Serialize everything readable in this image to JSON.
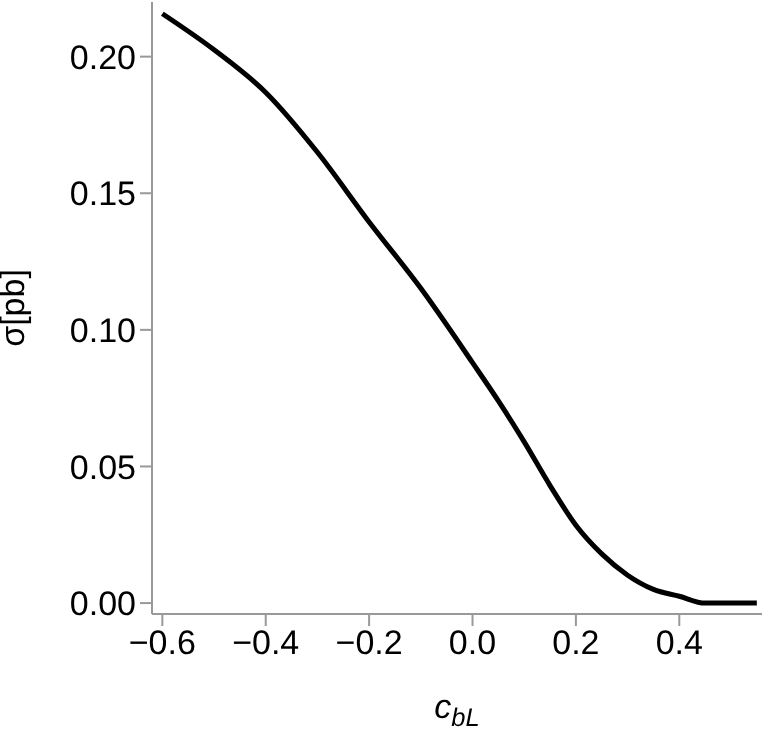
{
  "chart_data": {
    "type": "line",
    "xlabel": "c$_{bL}$",
    "ylabel": "σ[pb]",
    "x": [
      -0.6,
      -0.5,
      -0.4,
      -0.3,
      -0.2,
      -0.1,
      0.0,
      0.05,
      0.1,
      0.15,
      0.2,
      0.25,
      0.3,
      0.35,
      0.4,
      0.45,
      0.5,
      0.55
    ],
    "series": [
      {
        "color": "#000000",
        "values": [
          0.2157,
          0.2025,
          0.1869,
          0.165,
          0.1395,
          0.1152,
          0.088,
          0.074,
          0.059,
          0.043,
          0.0285,
          0.018,
          0.0102,
          0.005,
          0.0025,
          0.0,
          0.0,
          0.0
        ]
      }
    ],
    "xlim": [
      -0.62,
      0.56
    ],
    "xticks": [
      {
        "value": -0.6,
        "label": "−0.6"
      },
      {
        "value": -0.4,
        "label": "−0.4"
      },
      {
        "value": -0.2,
        "label": "−0.2"
      },
      {
        "value": 0,
        "label": "0.0"
      },
      {
        "value": 0.2,
        "label": "0.2"
      },
      {
        "value": 0.4,
        "label": "0.4"
      }
    ],
    "ylim": [
      -0.004,
      0.22
    ],
    "yticks": [
      {
        "value": 0,
        "label": "0.00"
      },
      {
        "value": 0.05,
        "label": "0.05"
      },
      {
        "value": 0.1,
        "label": "0.10"
      },
      {
        "value": 0.15,
        "label": "0.15"
      },
      {
        "value": 0.2,
        "label": "0.20"
      }
    ],
    "grid": false,
    "legend": false,
    "marker": "none",
    "line_style": "solid"
  }
}
